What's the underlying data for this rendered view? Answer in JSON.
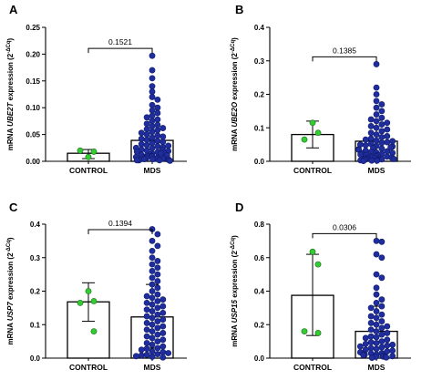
{
  "colors": {
    "control": "#33cc33",
    "mds": "#1f2d9e",
    "control_edge": "#1a6b1a",
    "mds_edge": "#0f1a66"
  },
  "chart_data": [
    {
      "panel": "A",
      "type": "bar",
      "gene": "UBE2T",
      "ylabel_prefix": "mRNA ",
      "ylabel_suffix": " expression (2",
      "ylabel_sup": "-ΔCq",
      "ylabel_end": ")",
      "ylim": [
        0,
        0.25
      ],
      "yticks": [
        "0.00",
        "0.05",
        "0.10",
        "0.15",
        "0.20",
        "0.25"
      ],
      "categories": [
        "CONTROL",
        "MDS"
      ],
      "values": [
        0.015,
        0.039
      ],
      "error": [
        [
          0.005,
          0.022
        ],
        [
          0.0,
          0.078
        ]
      ],
      "p_value": "0.1521",
      "points_control": [
        0.008,
        0.018,
        0.02
      ],
      "points_mds": [
        0.197,
        0.17,
        0.155,
        0.14,
        0.13,
        0.12,
        0.115,
        0.105,
        0.1,
        0.095,
        0.09,
        0.085,
        0.082,
        0.078,
        0.075,
        0.07,
        0.068,
        0.065,
        0.062,
        0.06,
        0.058,
        0.055,
        0.053,
        0.05,
        0.048,
        0.046,
        0.044,
        0.042,
        0.04,
        0.038,
        0.036,
        0.034,
        0.032,
        0.03,
        0.029,
        0.028,
        0.026,
        0.025,
        0.024,
        0.022,
        0.021,
        0.02,
        0.019,
        0.018,
        0.017,
        0.016,
        0.015,
        0.014,
        0.013,
        0.012,
        0.011,
        0.01,
        0.01,
        0.009,
        0.008,
        0.007,
        0.007,
        0.006,
        0.005,
        0.005,
        0.004,
        0.004,
        0.003,
        0.003,
        0.002,
        0.002,
        0.002,
        0.001
      ]
    },
    {
      "panel": "B",
      "type": "bar",
      "gene": "UBE2O",
      "ylabel_prefix": "mRNA ",
      "ylabel_suffix": " expression (2",
      "ylabel_sup": "-ΔCq",
      "ylabel_end": ")",
      "ylim": [
        0,
        0.4
      ],
      "yticks": [
        "0.0",
        "0.1",
        "0.2",
        "0.3",
        "0.4"
      ],
      "categories": [
        "CONTROL",
        "MDS"
      ],
      "values": [
        0.08,
        0.06
      ],
      "error": [
        [
          0.04,
          0.12
        ],
        [
          0.0,
          0.122
        ]
      ],
      "p_value": "0.1385",
      "points_control": [
        0.115,
        0.085,
        0.065
      ],
      "points_mds": [
        0.29,
        0.22,
        0.2,
        0.18,
        0.17,
        0.16,
        0.15,
        0.14,
        0.13,
        0.125,
        0.12,
        0.115,
        0.11,
        0.105,
        0.1,
        0.095,
        0.09,
        0.085,
        0.08,
        0.075,
        0.072,
        0.068,
        0.065,
        0.062,
        0.06,
        0.057,
        0.055,
        0.052,
        0.05,
        0.048,
        0.046,
        0.044,
        0.042,
        0.04,
        0.038,
        0.036,
        0.034,
        0.032,
        0.03,
        0.028,
        0.026,
        0.025,
        0.024,
        0.022,
        0.02,
        0.019,
        0.018,
        0.016,
        0.015,
        0.014,
        0.012,
        0.011,
        0.01,
        0.009,
        0.008,
        0.007,
        0.006,
        0.005,
        0.004,
        0.003,
        0.002,
        0.002,
        0.001
      ]
    },
    {
      "panel": "C",
      "type": "bar",
      "gene": "USP7",
      "ylabel_prefix": "mRNA ",
      "ylabel_suffix": " expression (2",
      "ylabel_sup": "-ΔCq",
      "ylabel_end": ")",
      "ylim": [
        0,
        0.4
      ],
      "yticks": [
        "0.0",
        "0.1",
        "0.2",
        "0.3",
        "0.4"
      ],
      "categories": [
        "CONTROL",
        "MDS"
      ],
      "values": [
        0.168,
        0.123
      ],
      "error": [
        [
          0.11,
          0.225
        ],
        [
          0.03,
          0.22
        ]
      ],
      "p_value": "0.1394",
      "points_control": [
        0.2,
        0.17,
        0.165,
        0.08
      ],
      "points_mds": [
        0.385,
        0.37,
        0.35,
        0.335,
        0.32,
        0.3,
        0.29,
        0.28,
        0.27,
        0.26,
        0.25,
        0.24,
        0.23,
        0.22,
        0.21,
        0.2,
        0.19,
        0.185,
        0.18,
        0.175,
        0.17,
        0.165,
        0.16,
        0.155,
        0.15,
        0.145,
        0.14,
        0.135,
        0.13,
        0.125,
        0.12,
        0.115,
        0.11,
        0.105,
        0.1,
        0.095,
        0.09,
        0.085,
        0.08,
        0.075,
        0.07,
        0.065,
        0.06,
        0.055,
        0.05,
        0.045,
        0.04,
        0.035,
        0.03,
        0.028,
        0.025,
        0.02,
        0.018,
        0.015,
        0.012,
        0.01,
        0.008,
        0.006,
        0.004,
        0.002
      ]
    },
    {
      "panel": "D",
      "type": "bar",
      "gene": "USP15",
      "ylabel_prefix": "mRNA ",
      "ylabel_suffix": " expression (2",
      "ylabel_sup": "-ΔCq",
      "ylabel_end": ")",
      "ylim": [
        0,
        0.8
      ],
      "yticks": [
        "0.0",
        "0.2",
        "0.4",
        "0.6",
        "0.8"
      ],
      "categories": [
        "CONTROL",
        "MDS"
      ],
      "values": [
        0.375,
        0.16
      ],
      "error": [
        [
          0.135,
          0.62
        ],
        [
          0.01,
          0.31
        ]
      ],
      "p_value": "0.0306",
      "points_control": [
        0.635,
        0.56,
        0.16,
        0.15
      ],
      "points_mds": [
        0.7,
        0.695,
        0.62,
        0.6,
        0.5,
        0.48,
        0.42,
        0.38,
        0.35,
        0.33,
        0.31,
        0.3,
        0.28,
        0.26,
        0.25,
        0.24,
        0.22,
        0.21,
        0.2,
        0.19,
        0.18,
        0.17,
        0.16,
        0.15,
        0.14,
        0.13,
        0.125,
        0.12,
        0.11,
        0.1,
        0.095,
        0.09,
        0.085,
        0.08,
        0.075,
        0.07,
        0.065,
        0.06,
        0.055,
        0.05,
        0.045,
        0.04,
        0.035,
        0.03,
        0.028,
        0.025,
        0.022,
        0.02,
        0.018,
        0.015,
        0.012,
        0.01,
        0.008,
        0.006,
        0.004,
        0.002
      ]
    }
  ]
}
